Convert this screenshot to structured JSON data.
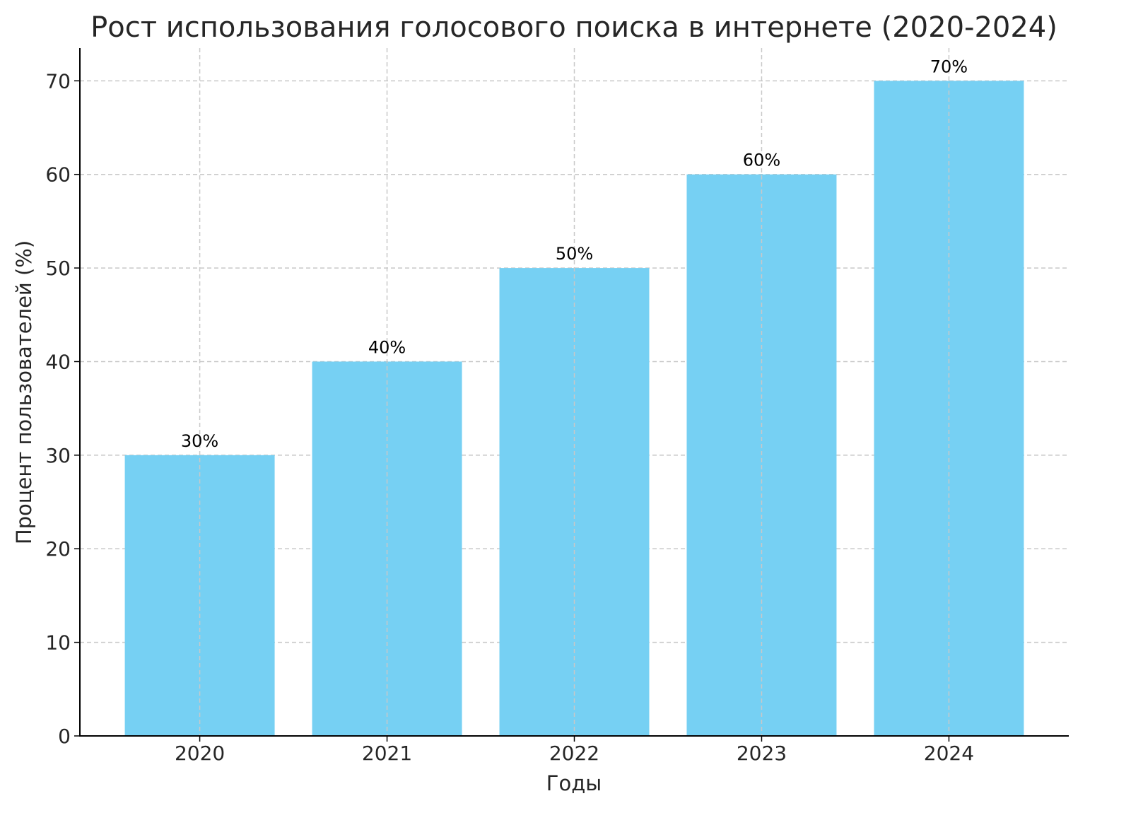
{
  "chart_data": {
    "type": "bar",
    "title": "Рост использования голосового поиска в интернете (2020-2024)",
    "xlabel": "Годы",
    "ylabel": "Процент пользователей (%)",
    "categories": [
      "2020",
      "2021",
      "2022",
      "2023",
      "2024"
    ],
    "values": [
      30,
      40,
      50,
      60,
      70
    ],
    "data_labels": [
      "30%",
      "40%",
      "50%",
      "60%",
      "70%"
    ],
    "yticks": [
      0,
      10,
      20,
      30,
      40,
      50,
      60,
      70
    ],
    "ylim": [
      0,
      73.5
    ],
    "grid": true,
    "colors": {
      "bar": "#76D0F3",
      "grid": "#c8c8c8",
      "text": "#262626"
    }
  }
}
